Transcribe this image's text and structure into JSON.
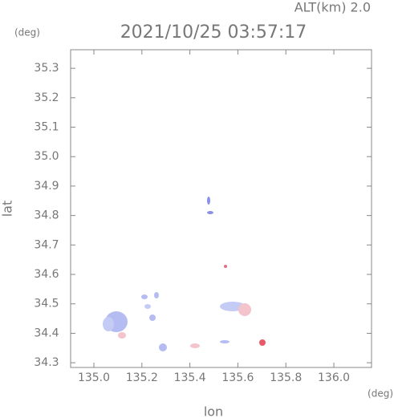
{
  "chart_data": {
    "type": "map-scatter",
    "title": "2021/10/25 03:57:17",
    "subtitle": "ALT(km) 2.0",
    "y_unit": "(deg)",
    "x_unit": "(deg)",
    "xlabel": "lon",
    "ylabel": "lat",
    "xlim": [
      134.903,
      136.157
    ],
    "ylim": [
      34.284,
      35.363
    ],
    "xticks": [
      {
        "value": 135.0,
        "label": "135.0"
      },
      135.2,
      135.4,
      135.6,
      135.8,
      {
        "value": 136.0,
        "label": "136.0"
      }
    ],
    "yticks": [
      34.3,
      34.4,
      34.5,
      34.6,
      34.7,
      34.8,
      34.9,
      {
        "value": 35.0,
        "label": "35.0"
      },
      35.1,
      35.2,
      35.3
    ]
  }
}
